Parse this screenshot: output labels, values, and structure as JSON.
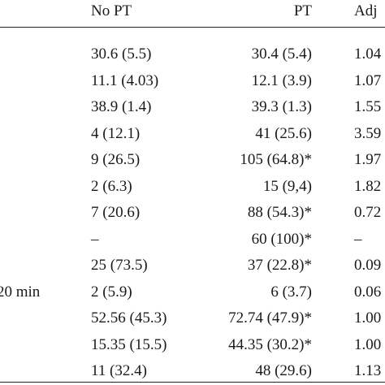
{
  "table": {
    "headers": {
      "no_pt": "No PT",
      "pt": "PT",
      "adj": "Adj"
    },
    "rows": [
      {
        "label": "",
        "no_pt": "30.6 (5.5)",
        "pt": "30.4 (5.4)",
        "adj": "1.04"
      },
      {
        "label": "",
        "no_pt": "11.1 (4.03)",
        "pt": "12.1 (3.9)",
        "adj": "1.07"
      },
      {
        "label": "",
        "no_pt": "38.9 (1.4)",
        "pt": "39.3 (1.3)",
        "adj": "1.55"
      },
      {
        "label": "",
        "no_pt": "4 (12.1)",
        "pt": "41 (25.6)",
        "adj": "3.59"
      },
      {
        "label": "",
        "no_pt": "9 (26.5)",
        "pt": "105 (64.8)*",
        "adj": "1.97"
      },
      {
        "label": "",
        "no_pt": "2 (6.3)",
        "pt": "15 (9,4)",
        "adj": "1.82"
      },
      {
        "label": "",
        "no_pt": "7 (20.6)",
        "pt": "88 (54.3)*",
        "adj": "0.72"
      },
      {
        "label": "",
        "no_pt": "–",
        "pt": "60 (100)*",
        "adj": "–"
      },
      {
        "label": "",
        "no_pt": "25 (73.5)",
        "pt": "37 (22.8)*",
        "adj": "0.09"
      },
      {
        "label": "20 min",
        "no_pt": "2 (5.9)",
        "pt": "6 (3.7)",
        "adj": "0.06"
      },
      {
        "label": "",
        "no_pt": "52.56 (45.3)",
        "pt": "72.74 (47.9)*",
        "adj": "1.00"
      },
      {
        "label": "",
        "no_pt": "15.35 (15.5)",
        "pt": "44.35 (30.2)*",
        "adj": "1.00"
      },
      {
        "label": "",
        "no_pt": "11 (32.4)",
        "pt": "48 (29.6)",
        "adj": "1.13"
      }
    ]
  }
}
